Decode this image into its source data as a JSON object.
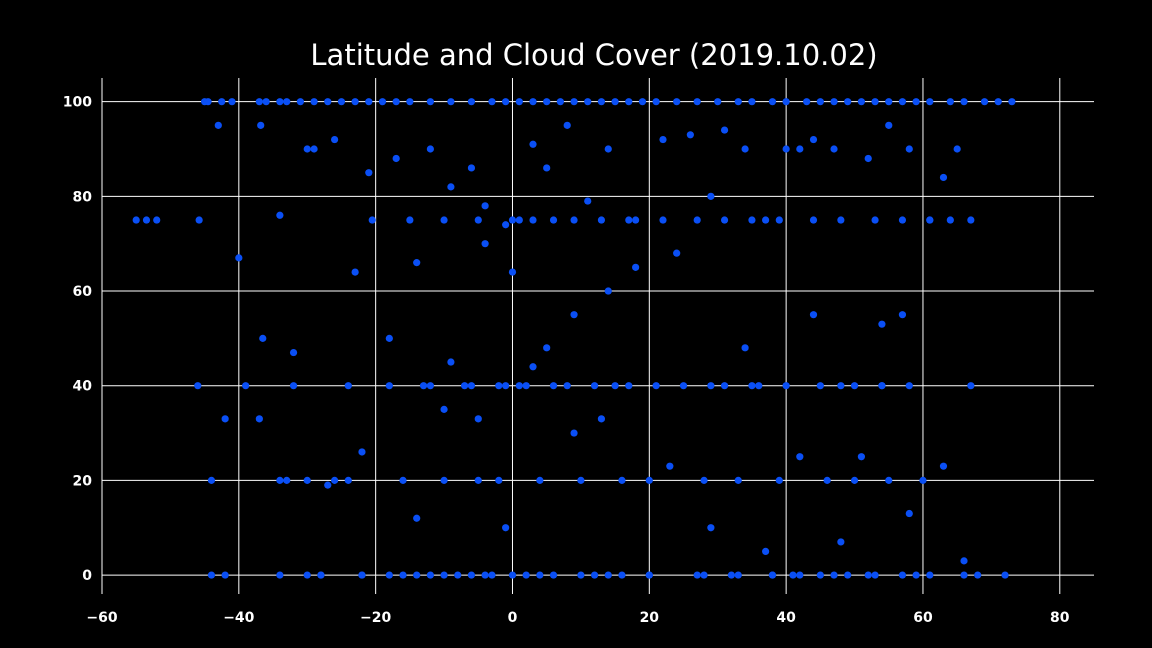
{
  "chart_data": {
    "type": "scatter",
    "title": "Latitude and Cloud Cover (2019.10.02)",
    "xlabel": "",
    "ylabel": "",
    "xlim": [
      -60,
      85
    ],
    "ylim": [
      -4,
      105
    ],
    "xticks": [
      -60,
      -40,
      -20,
      0,
      20,
      40,
      60,
      80
    ],
    "yticks": [
      0,
      20,
      40,
      60,
      80,
      100
    ],
    "grid": true,
    "background": "#000000",
    "grid_color": "#ffffff",
    "point_color": "#0a4ff5",
    "series": [
      {
        "x": [
          -55,
          -53.5,
          -52,
          -45,
          -44.5,
          -42.5,
          -41,
          -37,
          -36,
          -34,
          -33,
          -31,
          -29,
          -27,
          -25,
          -23,
          -21,
          -19,
          -17,
          -15,
          -12,
          -9,
          -6,
          -3,
          -1,
          1,
          3,
          5,
          7,
          9,
          11,
          13,
          15,
          17,
          19,
          21,
          24,
          27,
          30,
          33,
          35,
          38,
          40,
          43,
          45,
          47,
          49,
          51,
          53,
          55,
          57,
          59,
          61,
          64,
          66,
          69,
          71,
          73,
          -45.8,
          -43,
          -40,
          -36.8,
          -34,
          -30,
          -26,
          -21,
          -17,
          -12,
          -9,
          -6,
          -4,
          -1,
          1,
          3,
          5,
          8,
          11,
          14,
          17,
          22,
          26,
          29,
          31,
          34,
          37,
          40,
          42,
          44,
          47,
          52,
          55,
          58,
          61,
          63,
          65,
          67,
          -20.5,
          -15,
          -10,
          -5,
          0,
          3,
          6,
          9,
          13,
          18,
          22,
          27,
          31,
          35,
          39,
          44,
          48,
          53,
          57,
          61,
          64,
          -44,
          -42,
          -30,
          -28,
          -22,
          -18,
          -14,
          -10,
          -6,
          -3,
          2,
          6,
          12,
          16,
          20,
          28,
          32,
          38,
          41,
          45,
          49,
          52,
          59,
          -34,
          -28,
          -22,
          -16,
          -12,
          -8,
          -4,
          0,
          4,
          10,
          14,
          20,
          27,
          33,
          38,
          42,
          47,
          53,
          57,
          61,
          66,
          68,
          -32,
          -24,
          -13,
          -6,
          -2,
          1,
          8,
          15,
          21,
          29,
          36,
          45,
          50,
          54,
          67,
          -44,
          -39,
          -34,
          -26,
          -18,
          -12,
          -7,
          -1,
          2,
          6,
          12,
          17,
          25,
          31,
          35,
          40,
          48,
          54,
          58,
          -33,
          -30,
          -24,
          -16,
          -10,
          -5,
          -2,
          4,
          10,
          16,
          20,
          28,
          33,
          39,
          46,
          50,
          55,
          60,
          -46,
          -42,
          -36.5,
          -29,
          -23,
          -14,
          -9,
          -4,
          0,
          5,
          9,
          13,
          18,
          24,
          29,
          37,
          44,
          51,
          57,
          63,
          66,
          72,
          -37,
          -32,
          -27,
          -22,
          -18,
          -14,
          -10,
          -5,
          -1,
          3,
          9,
          14,
          23,
          34,
          42,
          48,
          54,
          58
        ],
        "y": [
          75,
          75,
          75,
          100,
          100,
          100,
          100,
          100,
          100,
          100,
          100,
          100,
          100,
          100,
          100,
          100,
          100,
          100,
          100,
          100,
          100,
          100,
          100,
          100,
          100,
          100,
          100,
          100,
          100,
          100,
          100,
          100,
          100,
          100,
          100,
          100,
          100,
          100,
          100,
          100,
          100,
          100,
          100,
          100,
          100,
          100,
          100,
          100,
          100,
          100,
          100,
          100,
          100,
          100,
          100,
          100,
          100,
          100,
          75,
          95,
          67,
          95,
          76,
          90,
          92,
          85,
          88,
          90,
          82,
          86,
          78,
          74,
          75,
          91,
          86,
          95,
          79,
          90,
          75,
          92,
          93,
          80,
          94,
          90,
          75,
          90,
          90,
          92,
          90,
          88,
          95,
          90,
          75,
          84,
          90,
          75,
          75,
          75,
          75,
          75,
          75,
          75,
          75,
          75,
          75,
          75,
          75,
          75,
          75,
          75,
          75,
          75,
          75,
          75,
          75,
          75,
          75,
          0,
          0,
          0,
          0,
          0,
          0,
          0,
          0,
          0,
          0,
          0,
          0,
          0,
          0,
          0,
          0,
          0,
          0,
          0,
          0,
          0,
          0,
          0,
          0,
          0,
          0,
          0,
          0,
          0,
          0,
          0,
          0,
          0,
          0,
          0,
          0,
          0,
          0,
          0,
          0,
          0,
          0,
          0,
          0,
          0,
          40,
          40,
          40,
          40,
          40,
          40,
          40,
          40,
          40,
          40,
          40,
          40,
          40,
          40,
          40,
          20,
          40,
          20,
          20,
          40,
          40,
          40,
          40,
          40,
          40,
          40,
          40,
          40,
          40,
          40,
          40,
          40,
          40,
          40,
          20,
          20,
          20,
          20,
          20,
          20,
          20,
          20,
          20,
          20,
          20,
          20,
          20,
          20,
          20,
          20,
          20,
          20,
          40,
          33,
          50,
          90,
          64,
          66,
          45,
          70,
          64,
          48,
          55,
          33,
          65,
          68,
          10,
          5,
          55,
          25,
          55,
          23,
          3,
          0,
          33,
          47,
          19,
          26,
          50,
          12,
          35,
          33,
          10,
          44,
          30,
          60,
          23,
          48,
          25,
          7,
          53,
          13
        ]
      }
    ]
  }
}
